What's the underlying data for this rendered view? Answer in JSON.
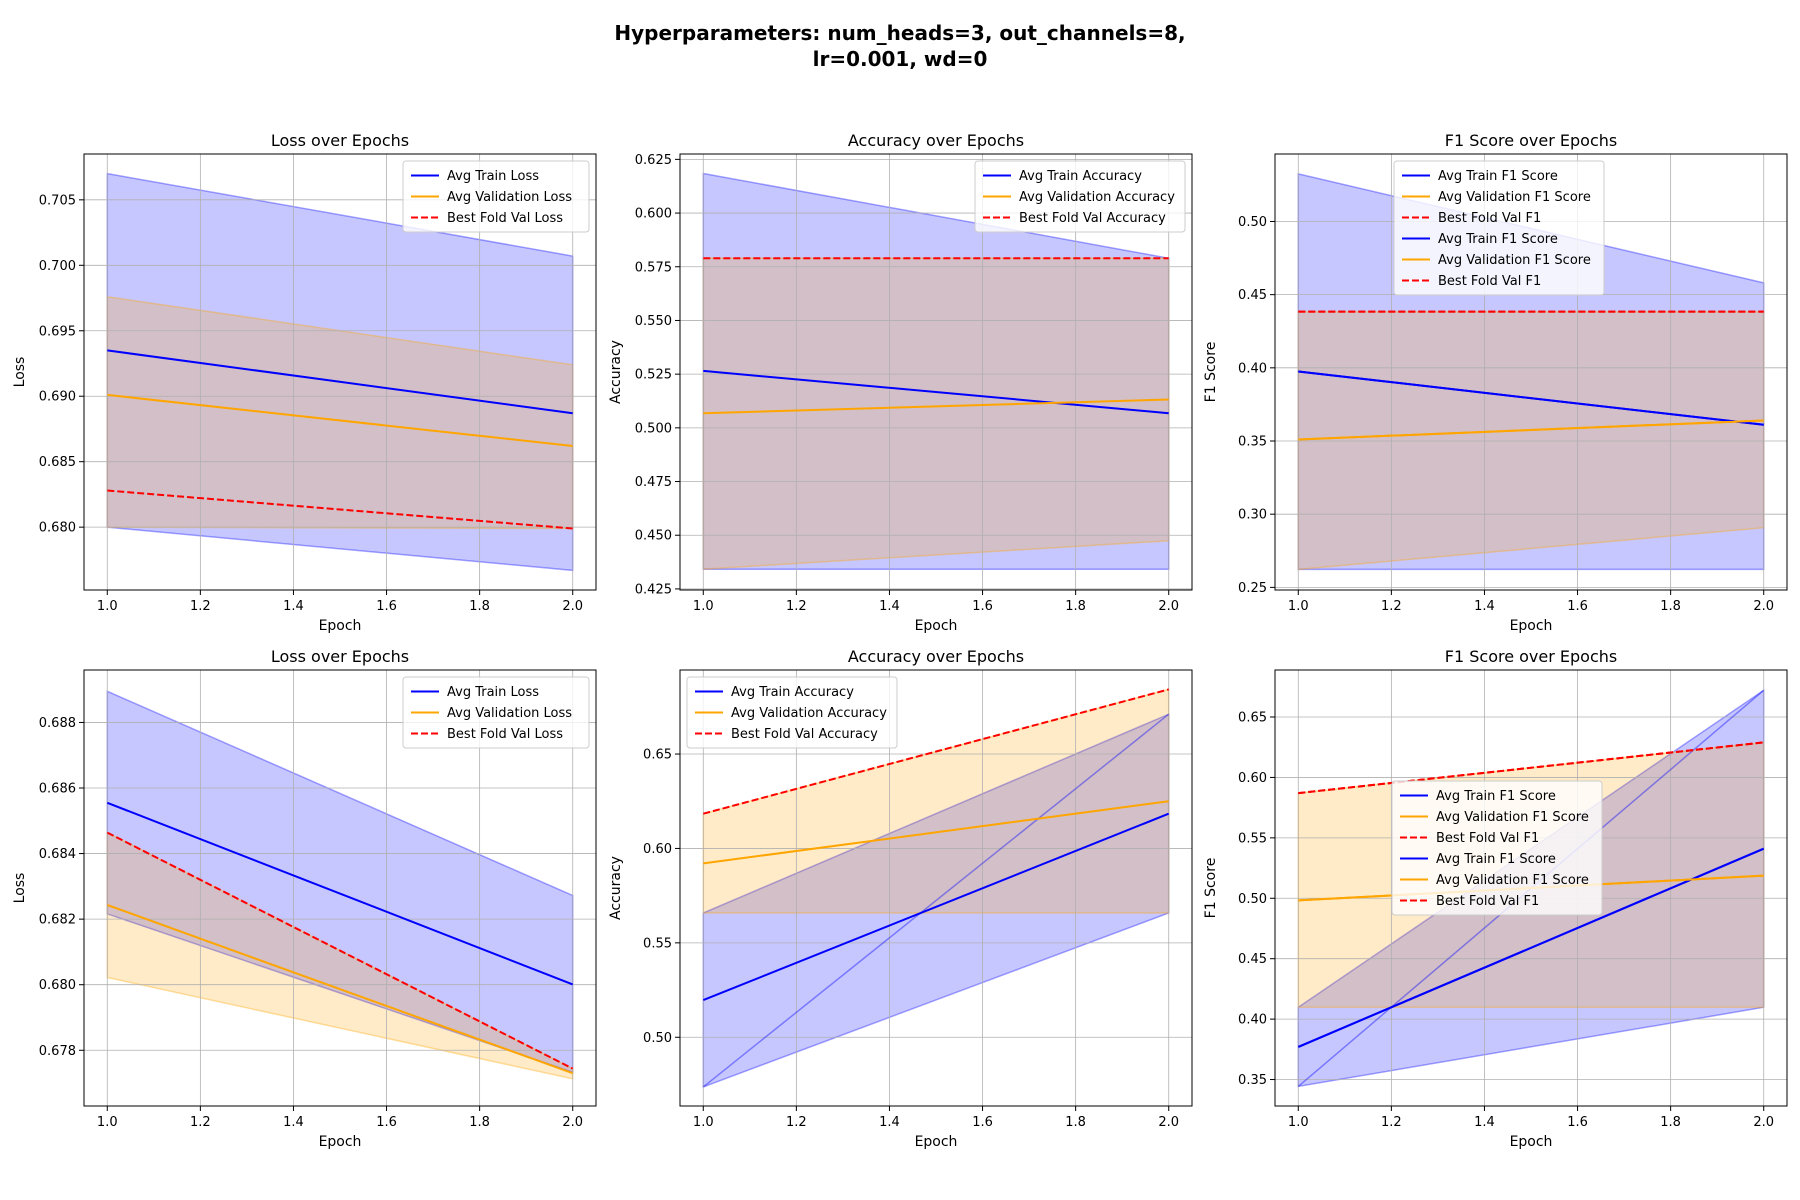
{
  "figure": {
    "title_line1": "Hyperparameters: num_heads=3, out_channels=8,",
    "title_line2": "lr=0.001, wd=0"
  },
  "colors": {
    "train": "#0000ff",
    "val": "#ffa500",
    "best": "#ff0000",
    "train_band_top": "#c8c8ff",
    "train_band_bottom": "#a0a0ff",
    "val_band": "#ffe8c0",
    "overlap_band": "#d4bfca",
    "overlap_band_dark": "#b49ca8"
  },
  "chart_data": [
    {
      "type": "line",
      "title": "Loss over Epochs",
      "xlabel": "Epoch",
      "ylabel": "Loss",
      "xlim": [
        0.95,
        2.05
      ],
      "ylim": [
        0.6752,
        0.7085
      ],
      "xticks": [
        1.0,
        1.2,
        1.4,
        1.6,
        1.8,
        2.0
      ],
      "xtick_labels": [
        "1.0",
        "1.2",
        "1.4",
        "1.6",
        "1.8",
        "2.0"
      ],
      "yticks": [
        0.68,
        0.685,
        0.69,
        0.695,
        0.7,
        0.705
      ],
      "ytick_labels": [
        "0.680",
        "0.685",
        "0.690",
        "0.695",
        "0.700",
        "0.705"
      ],
      "grid": true,
      "legend_position": "upper right",
      "x": [
        1,
        2
      ],
      "series": [
        {
          "name": "Avg Train Loss",
          "values": [
            0.6935,
            0.6887
          ],
          "style": "solid",
          "color_key": "train"
        },
        {
          "name": "Avg Validation Loss",
          "values": [
            0.6901,
            0.6862
          ],
          "style": "solid",
          "color_key": "val"
        },
        {
          "name": "Best Fold Val Loss",
          "values": [
            0.6828,
            0.6799
          ],
          "style": "dashed",
          "color_key": "best"
        }
      ],
      "bands": [
        {
          "series": "Avg Train Loss",
          "lower": [
            0.68,
            0.6767
          ],
          "upper": [
            0.707,
            0.7007
          ]
        },
        {
          "series": "Avg Validation Loss",
          "lower": [
            0.68,
            0.6799
          ],
          "upper": [
            0.6976,
            0.6924
          ]
        }
      ]
    },
    {
      "type": "line",
      "title": "Accuracy over Epochs",
      "xlabel": "Epoch",
      "ylabel": "Accuracy",
      "xlim": [
        0.95,
        2.05
      ],
      "ylim": [
        0.4245,
        0.6275
      ],
      "xticks": [
        1.0,
        1.2,
        1.4,
        1.6,
        1.8,
        2.0
      ],
      "xtick_labels": [
        "1.0",
        "1.2",
        "1.4",
        "1.6",
        "1.8",
        "2.0"
      ],
      "yticks": [
        0.425,
        0.45,
        0.475,
        0.5,
        0.525,
        0.55,
        0.575,
        0.6,
        0.625
      ],
      "ytick_labels": [
        "0.425",
        "0.450",
        "0.475",
        "0.500",
        "0.525",
        "0.550",
        "0.575",
        "0.600",
        "0.625"
      ],
      "grid": true,
      "legend_position": "upper right",
      "x": [
        1,
        2
      ],
      "series": [
        {
          "name": "Avg Train Accuracy",
          "values": [
            0.5265,
            0.5068
          ],
          "style": "solid",
          "color_key": "train"
        },
        {
          "name": "Avg Validation Accuracy",
          "values": [
            0.5068,
            0.5132
          ],
          "style": "solid",
          "color_key": "val"
        },
        {
          "name": "Best Fold Val Accuracy",
          "values": [
            0.579,
            0.579
          ],
          "style": "dashed",
          "color_key": "best"
        }
      ],
      "bands": [
        {
          "series": "Avg Train Accuracy",
          "lower": [
            0.4342,
            0.4342
          ],
          "upper": [
            0.6184,
            0.579
          ]
        },
        {
          "series": "Avg Validation Accuracy",
          "lower": [
            0.4342,
            0.4474
          ],
          "upper": [
            0.579,
            0.579
          ]
        }
      ]
    },
    {
      "type": "line",
      "title": "F1 Score over Epochs",
      "xlabel": "Epoch",
      "ylabel": "F1 Score",
      "xlim": [
        0.95,
        2.05
      ],
      "ylim": [
        0.2482,
        0.5461
      ],
      "xticks": [
        1.0,
        1.2,
        1.4,
        1.6,
        1.8,
        2.0
      ],
      "xtick_labels": [
        "1.0",
        "1.2",
        "1.4",
        "1.6",
        "1.8",
        "2.0"
      ],
      "yticks": [
        0.25,
        0.3,
        0.35,
        0.4,
        0.45,
        0.5
      ],
      "ytick_labels": [
        "0.25",
        "0.30",
        "0.35",
        "0.40",
        "0.45",
        "0.50"
      ],
      "grid": true,
      "legend_position": "upper center",
      "x": [
        1,
        2
      ],
      "series": [
        {
          "name": "Avg Train F1 Score",
          "values": [
            0.3975,
            0.3611
          ],
          "style": "solid",
          "color_key": "train"
        },
        {
          "name": "Avg Validation F1 Score",
          "values": [
            0.351,
            0.364
          ],
          "style": "solid",
          "color_key": "val"
        },
        {
          "name": "Best Fold Val F1",
          "values": [
            0.4384,
            0.4384
          ],
          "style": "dashed",
          "color_key": "best"
        },
        {
          "name": "Avg Train F1 Score",
          "values": [
            0.3975,
            0.3611
          ],
          "style": "solid",
          "color_key": "train"
        },
        {
          "name": "Avg Validation F1 Score",
          "values": [
            0.351,
            0.364
          ],
          "style": "solid",
          "color_key": "val"
        },
        {
          "name": "Best Fold Val F1",
          "values": [
            0.4384,
            0.4384
          ],
          "style": "dashed",
          "color_key": "best"
        }
      ],
      "bands": [
        {
          "series": "Avg Train F1 Score",
          "lower": [
            0.2623,
            0.2623
          ],
          "upper": [
            0.5325,
            0.458
          ]
        },
        {
          "series": "Avg Validation F1 Score",
          "lower": [
            0.2623,
            0.2908
          ],
          "upper": [
            0.4384,
            0.4384
          ]
        }
      ]
    },
    {
      "type": "line",
      "title": "Loss over Epochs",
      "xlabel": "Epoch",
      "ylabel": "Loss",
      "xlim": [
        0.95,
        2.05
      ],
      "ylim": [
        0.6763,
        0.6896
      ],
      "xticks": [
        1.0,
        1.2,
        1.4,
        1.6,
        1.8,
        2.0
      ],
      "xtick_labels": [
        "1.0",
        "1.2",
        "1.4",
        "1.6",
        "1.8",
        "2.0"
      ],
      "yticks": [
        0.678,
        0.68,
        0.682,
        0.684,
        0.686,
        0.688
      ],
      "ytick_labels": [
        "0.678",
        "0.680",
        "0.682",
        "0.684",
        "0.686",
        "0.688"
      ],
      "grid": true,
      "legend_position": "upper right",
      "x": [
        1,
        2
      ],
      "series": [
        {
          "name": "Avg Train Loss",
          "values": [
            0.68555,
            0.68001
          ],
          "style": "solid",
          "color_key": "train"
        },
        {
          "name": "Avg Validation Loss",
          "values": [
            0.68243,
            0.6773
          ],
          "style": "solid",
          "color_key": "val"
        },
        {
          "name": "Best Fold Val Loss",
          "values": [
            0.68464,
            0.67744
          ],
          "style": "dashed",
          "color_key": "best"
        }
      ],
      "bands": [
        {
          "series": "Avg Train Loss",
          "lower": [
            0.68216,
            0.67733
          ],
          "upper": [
            0.68895,
            0.68272
          ]
        },
        {
          "series": "Avg Validation Loss",
          "lower": [
            0.68022,
            0.67713
          ],
          "upper": [
            0.68464,
            0.67744
          ]
        }
      ]
    },
    {
      "type": "line",
      "title": "Accuracy over Epochs",
      "xlabel": "Epoch",
      "ylabel": "Accuracy",
      "xlim": [
        0.95,
        2.05
      ],
      "ylim": [
        0.4636,
        0.6945
      ],
      "xticks": [
        1.0,
        1.2,
        1.4,
        1.6,
        1.8,
        2.0
      ],
      "xtick_labels": [
        "1.0",
        "1.2",
        "1.4",
        "1.6",
        "1.8",
        "2.0"
      ],
      "yticks": [
        0.5,
        0.55,
        0.6,
        0.65
      ],
      "ytick_labels": [
        "0.50",
        "0.55",
        "0.60",
        "0.65"
      ],
      "grid": true,
      "legend_position": "upper left",
      "x": [
        1,
        2
      ],
      "series": [
        {
          "name": "Avg Train Accuracy",
          "values": [
            0.5197,
            0.6184
          ],
          "style": "solid",
          "color_key": "train"
        },
        {
          "name": "Avg Validation Accuracy",
          "values": [
            0.5921,
            0.625
          ],
          "style": "solid",
          "color_key": "val"
        },
        {
          "name": "Best Fold Val Accuracy",
          "values": [
            0.6184,
            0.6842
          ],
          "style": "dashed",
          "color_key": "best"
        }
      ],
      "bands": [
        {
          "series": "Avg Train Accuracy",
          "lower": [
            0.4737,
            0.5658
          ],
          "upper": [
            0.5658,
            0.6711
          ]
        },
        {
          "series": "Avg Validation Accuracy",
          "lower": [
            0.5658,
            0.5658
          ],
          "upper": [
            0.6184,
            0.6842
          ]
        }
      ],
      "extra_lines": [
        {
          "values": [
            0.4737,
            0.6711
          ],
          "color_key": "train",
          "alpha": 0.4
        }
      ]
    },
    {
      "type": "line",
      "title": "F1 Score over Epochs",
      "xlabel": "Epoch",
      "ylabel": "F1 Score",
      "xlim": [
        0.95,
        2.05
      ],
      "ylim": [
        0.3281,
        0.6889
      ],
      "xticks": [
        1.0,
        1.2,
        1.4,
        1.6,
        1.8,
        2.0
      ],
      "xtick_labels": [
        "1.0",
        "1.2",
        "1.4",
        "1.6",
        "1.8",
        "2.0"
      ],
      "yticks": [
        0.35,
        0.4,
        0.45,
        0.5,
        0.55,
        0.6,
        0.65
      ],
      "ytick_labels": [
        "0.35",
        "0.40",
        "0.45",
        "0.50",
        "0.55",
        "0.60",
        "0.65"
      ],
      "grid": true,
      "legend_position": "center",
      "x": [
        1,
        2
      ],
      "series": [
        {
          "name": "Avg Train F1 Score",
          "values": [
            0.377,
            0.541
          ],
          "style": "solid",
          "color_key": "train"
        },
        {
          "name": "Avg Validation F1 Score",
          "values": [
            0.4982,
            0.5188
          ],
          "style": "solid",
          "color_key": "val"
        },
        {
          "name": "Best Fold Val F1",
          "values": [
            0.587,
            0.629
          ],
          "style": "dashed",
          "color_key": "best"
        },
        {
          "name": "Avg Train F1 Score",
          "values": [
            0.377,
            0.541
          ],
          "style": "solid",
          "color_key": "train"
        },
        {
          "name": "Avg Validation F1 Score",
          "values": [
            0.4982,
            0.5188
          ],
          "style": "solid",
          "color_key": "val"
        },
        {
          "name": "Best Fold Val F1",
          "values": [
            0.587,
            0.629
          ],
          "style": "dashed",
          "color_key": "best"
        }
      ],
      "bands": [
        {
          "series": "Avg Train F1 Score",
          "lower": [
            0.3443,
            0.4098
          ],
          "upper": [
            0.4098,
            0.6721
          ]
        },
        {
          "series": "Avg Validation F1 Score",
          "lower": [
            0.4098,
            0.4098
          ],
          "upper": [
            0.587,
            0.629
          ]
        }
      ],
      "extra_lines": [
        {
          "values": [
            0.3443,
            0.6721
          ],
          "color_key": "train",
          "alpha": 0.4
        }
      ]
    }
  ]
}
